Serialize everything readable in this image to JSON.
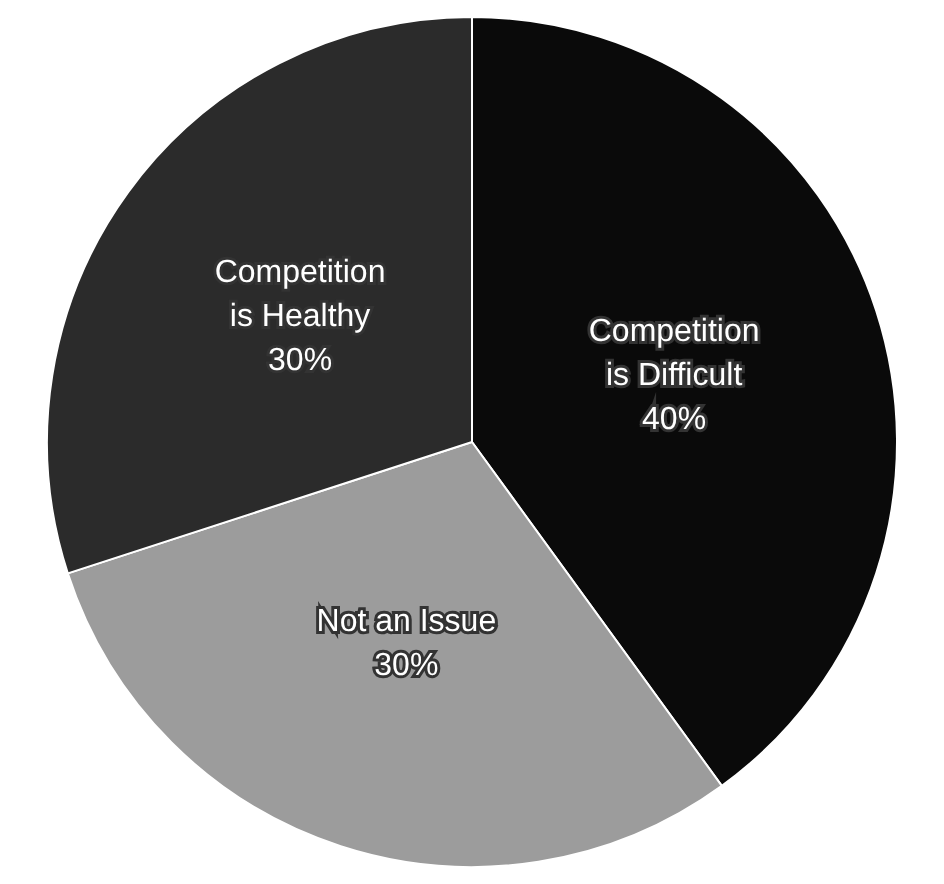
{
  "chart_data": {
    "type": "pie",
    "categories": [
      "Competition is Difficult",
      "Not an Issue",
      "Competition is Healthy"
    ],
    "values": [
      40,
      30,
      30
    ],
    "colors": [
      "#0a0a0a",
      "#9c9c9c",
      "#2b2b2b"
    ],
    "value_labels": [
      "40%",
      "30%",
      "30%"
    ],
    "legend": false
  }
}
